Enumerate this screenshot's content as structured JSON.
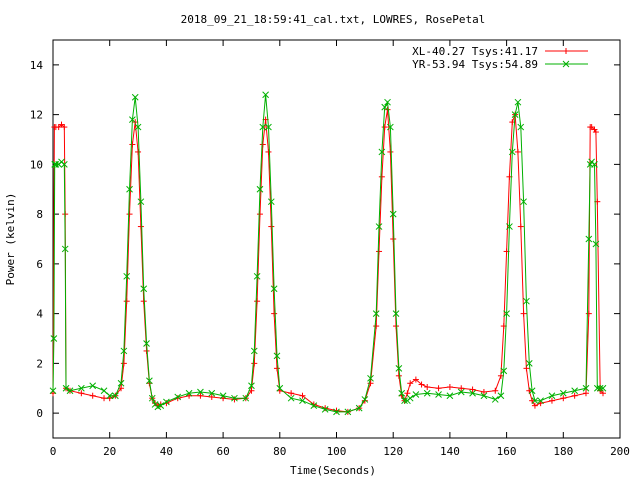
{
  "chart_data": {
    "type": "line",
    "title": "2018_09_21_18:59:41_cal.txt, LOWRES, RosePetal",
    "xlabel": "Time(Seconds)",
    "ylabel": "Power (kelvin)",
    "xlim": [
      0,
      200
    ],
    "ylim": [
      -1,
      15
    ],
    "x_ticks": [
      0,
      20,
      40,
      60,
      80,
      100,
      120,
      140,
      160,
      180,
      200
    ],
    "y_ticks": [
      0,
      2,
      4,
      6,
      8,
      10,
      12,
      14
    ],
    "grid": false,
    "legend_position": "top-right",
    "series": [
      {
        "name": "XL-40.27 Tsys:41.17",
        "color": "#ff0000",
        "marker": "plus",
        "x": [
          0,
          0.5,
          1,
          2,
          3,
          4,
          4.3,
          4.6,
          6,
          10,
          14,
          18,
          20,
          22,
          24,
          25,
          26,
          27,
          28,
          29,
          30,
          31,
          32,
          33,
          34,
          35,
          36,
          37,
          38,
          40,
          44,
          48,
          52,
          56,
          60,
          64,
          68,
          70,
          71,
          72,
          73,
          74,
          75,
          76,
          77,
          78,
          79,
          80,
          84,
          88,
          92,
          96,
          100,
          104,
          108,
          110,
          112,
          114,
          115,
          116,
          117,
          118,
          119,
          120,
          121,
          122,
          123,
          124,
          125,
          126,
          128,
          130,
          132,
          136,
          140,
          144,
          148,
          152,
          156,
          158,
          159,
          160,
          161,
          162,
          163,
          164,
          165,
          166,
          167,
          168,
          169,
          170,
          172,
          176,
          180,
          184,
          188,
          189,
          189.5,
          190,
          191,
          191.5,
          192,
          193,
          194
        ],
        "y": [
          0.8,
          11.5,
          11.5,
          11.5,
          11.6,
          11.5,
          8,
          1.0,
          0.9,
          0.8,
          0.7,
          0.6,
          0.6,
          0.7,
          1.0,
          2.0,
          4.5,
          8.0,
          10.8,
          11.7,
          10.5,
          7.5,
          4.5,
          2.5,
          1.2,
          0.6,
          0.4,
          0.3,
          0.35,
          0.4,
          0.6,
          0.7,
          0.7,
          0.65,
          0.6,
          0.55,
          0.6,
          0.9,
          2.0,
          4.5,
          8.0,
          10.8,
          11.8,
          10.5,
          7.5,
          4.0,
          1.8,
          0.9,
          0.8,
          0.7,
          0.35,
          0.2,
          0.1,
          0.05,
          0.2,
          0.5,
          1.2,
          3.5,
          6.5,
          9.5,
          11.5,
          12.2,
          10.5,
          7.0,
          3.5,
          1.5,
          0.7,
          0.5,
          0.8,
          1.2,
          1.35,
          1.15,
          1.05,
          1.0,
          1.05,
          1.0,
          0.95,
          0.85,
          0.9,
          1.5,
          3.5,
          6.5,
          9.5,
          11.7,
          12.0,
          10.5,
          7.5,
          4.0,
          1.8,
          0.9,
          0.5,
          0.3,
          0.4,
          0.5,
          0.6,
          0.7,
          0.8,
          4.0,
          11.5,
          11.5,
          11.4,
          11.3,
          8.5,
          0.9,
          0.8
        ]
      },
      {
        "name": "YR-53.94 Tsys:54.89",
        "color": "#00b000",
        "marker": "cross",
        "x": [
          0,
          0.3,
          0.6,
          1,
          2,
          3,
          4,
          4.3,
          4.6,
          6,
          10,
          14,
          18,
          20,
          22,
          24,
          25,
          26,
          27,
          28,
          29,
          30,
          31,
          32,
          33,
          34,
          35,
          36,
          37,
          38,
          40,
          44,
          48,
          52,
          56,
          60,
          64,
          68,
          70,
          71,
          72,
          73,
          74,
          75,
          76,
          77,
          78,
          79,
          80,
          84,
          88,
          92,
          96,
          100,
          104,
          108,
          110,
          112,
          114,
          115,
          116,
          117,
          118,
          119,
          120,
          121,
          122,
          123,
          124,
          125,
          126,
          128,
          132,
          136,
          140,
          144,
          148,
          152,
          156,
          158,
          159,
          160,
          161,
          162,
          163,
          164,
          165,
          166,
          167,
          168,
          169,
          170,
          172,
          176,
          180,
          184,
          188,
          189,
          189.5,
          190,
          191,
          191.5,
          192,
          193,
          194
        ],
        "y": [
          0.9,
          3.0,
          10.0,
          10.0,
          10.0,
          10.1,
          10.0,
          6.6,
          1.0,
          0.9,
          1.0,
          1.1,
          0.9,
          0.7,
          0.7,
          1.2,
          2.5,
          5.5,
          9.0,
          11.8,
          12.7,
          11.5,
          8.5,
          5.0,
          2.8,
          1.3,
          0.6,
          0.35,
          0.25,
          0.3,
          0.45,
          0.65,
          0.8,
          0.85,
          0.8,
          0.7,
          0.6,
          0.6,
          1.1,
          2.5,
          5.5,
          9.0,
          11.5,
          12.8,
          11.5,
          8.5,
          5.0,
          2.3,
          1.0,
          0.6,
          0.5,
          0.3,
          0.15,
          0.05,
          0.05,
          0.2,
          0.55,
          1.4,
          4.0,
          7.5,
          10.5,
          12.3,
          12.5,
          11.5,
          8.0,
          4.0,
          1.8,
          0.8,
          0.5,
          0.5,
          0.6,
          0.75,
          0.8,
          0.75,
          0.7,
          0.85,
          0.8,
          0.7,
          0.55,
          0.7,
          1.7,
          4.0,
          7.5,
          10.5,
          12.0,
          12.5,
          11.5,
          8.5,
          4.5,
          2.0,
          0.9,
          0.5,
          0.5,
          0.7,
          0.8,
          0.9,
          1.0,
          7.0,
          10.0,
          10.1,
          10.0,
          6.8,
          1.0,
          1.0,
          1.0
        ]
      }
    ]
  }
}
